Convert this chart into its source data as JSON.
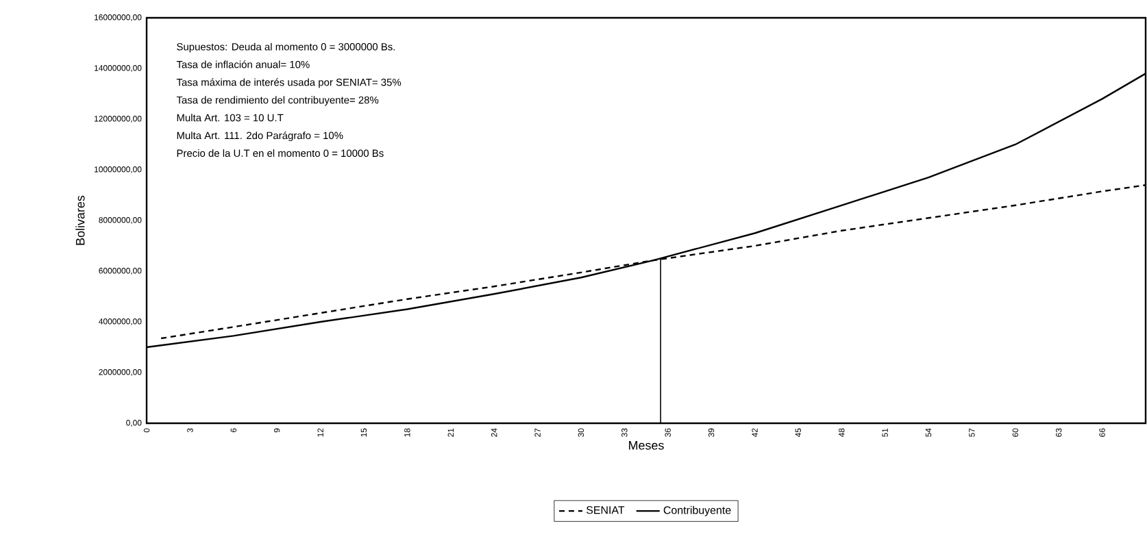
{
  "chart_data": {
    "type": "line",
    "xlabel": "Meses",
    "ylabel": "Bolivares",
    "annotations": [
      "Supuestos: Deuda al momento 0 =  3000000 Bs.",
      "Tasa de inflación anual= 10%",
      "Tasa máxima de interés usada por SENIAT= 35%",
      "Tasa de rendimiento del contribuyente=  28%",
      "Multa Art. 103  = 10  U.T",
      "Multa Art. 111. 2do  Parágrafo = 10%",
      "Precio de la U.T  en el momento 0 = 10000 Bs"
    ],
    "series": [
      {
        "name": "SENIAT",
        "color": "#000000",
        "line_style": "dashed",
        "x": [
          1,
          6,
          12,
          18,
          24,
          30,
          35,
          42,
          48,
          54,
          60,
          66,
          69
        ],
        "values": [
          3350000,
          3800000,
          4350000,
          4900000,
          5400000,
          5950000,
          6430000,
          7000000,
          7600000,
          8100000,
          8600000,
          9150000,
          9400000
        ]
      },
      {
        "name": "Contribuyente",
        "color": "#000000",
        "line_style": "solid",
        "x": [
          0,
          6,
          12,
          18,
          24,
          30,
          35,
          42,
          48,
          54,
          60,
          66,
          69
        ],
        "values": [
          3000000,
          3450000,
          4000000,
          4500000,
          5100000,
          5750000,
          6430000,
          7500000,
          8600000,
          9700000,
          11000000,
          12800000,
          13800000
        ]
      }
    ],
    "xlim": [
      0,
      69
    ],
    "xticks": [
      0,
      3,
      6,
      9,
      12,
      15,
      18,
      21,
      24,
      27,
      30,
      33,
      36,
      39,
      42,
      45,
      48,
      51,
      54,
      57,
      60,
      63,
      66
    ],
    "ylim": [
      0,
      16000000
    ],
    "yticks": [
      {
        "value": 0,
        "label": "0,00"
      },
      {
        "value": 2000000,
        "label": "2000000,00"
      },
      {
        "value": 4000000,
        "label": "4000000,00"
      },
      {
        "value": 6000000,
        "label": "6000000,00"
      },
      {
        "value": 8000000,
        "label": "8000000,00"
      },
      {
        "value": 10000000,
        "label": "10000000,00"
      },
      {
        "value": 12000000,
        "label": "12000000,00"
      },
      {
        "value": 14000000,
        "label": "14000000,00"
      },
      {
        "value": 16000000,
        "label": "16000000,00"
      }
    ],
    "ref_lines": [
      {
        "axis": "x",
        "value": 35.5,
        "color": "#000000"
      }
    ],
    "legend": "bottom",
    "grid": false,
    "marker": "none"
  }
}
